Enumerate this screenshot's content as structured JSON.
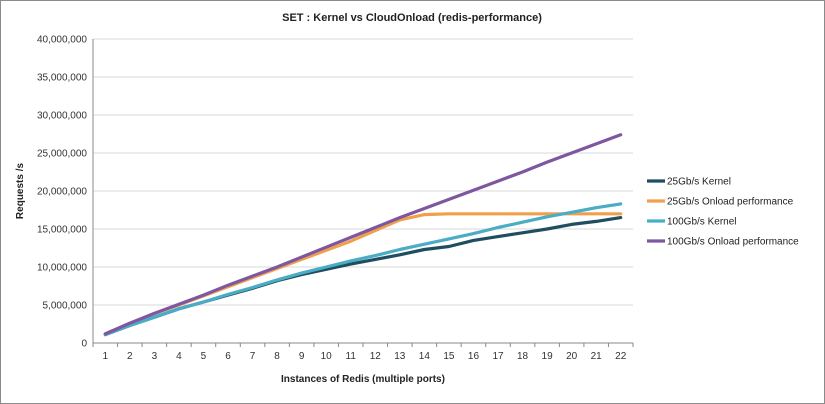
{
  "chart_data": {
    "type": "line",
    "title": "SET : Kernel vs CloudOnload (redis-performance)",
    "xlabel": "Instances of Redis (multiple ports)",
    "ylabel": "Requests /s",
    "ylim": [
      0,
      40000000
    ],
    "y_ticks": [
      "0",
      "5,000,000",
      "10,000,000",
      "15,000,000",
      "20,000,000",
      "25,000,000",
      "30,000,000",
      "35,000,000",
      "40,000,000"
    ],
    "y_tick_values": [
      0,
      5000000,
      10000000,
      15000000,
      20000000,
      25000000,
      30000000,
      35000000,
      40000000
    ],
    "x": [
      1,
      2,
      3,
      4,
      5,
      6,
      7,
      8,
      9,
      10,
      11,
      12,
      13,
      14,
      15,
      16,
      17,
      18,
      19,
      20,
      21,
      22
    ],
    "grid": "horizontal",
    "legend_position": "right",
    "series": [
      {
        "name": "25Gb/s Kernel",
        "color": "#1f4e60",
        "values": [
          1100000,
          2300000,
          3400000,
          4500000,
          5400000,
          6300000,
          7200000,
          8200000,
          9000000,
          9700000,
          10400000,
          11000000,
          11600000,
          12300000,
          12700000,
          13500000,
          14000000,
          14500000,
          15000000,
          15600000,
          16000000,
          16500000
        ]
      },
      {
        "name": "25Gb/s Onload performance",
        "color": "#f0a04b",
        "values": [
          1200000,
          2600000,
          3900000,
          5000000,
          6200000,
          7400000,
          8600000,
          9800000,
          11000000,
          12200000,
          13400000,
          14800000,
          16200000,
          16900000,
          17000000,
          17000000,
          17000000,
          17000000,
          17000000,
          17000000,
          17000000,
          17000000
        ]
      },
      {
        "name": "100Gb/s Kernel",
        "color": "#4bacc6",
        "values": [
          1100000,
          2300000,
          3400000,
          4500000,
          5400000,
          6400000,
          7300000,
          8300000,
          9200000,
          10000000,
          10800000,
          11500000,
          12300000,
          13000000,
          13700000,
          14400000,
          15200000,
          15900000,
          16600000,
          17200000,
          17800000,
          18300000
        ]
      },
      {
        "name": "100Gb/s Onload performance",
        "color": "#7e57a0",
        "values": [
          1200000,
          2600000,
          3900000,
          5100000,
          6300000,
          7600000,
          8800000,
          10000000,
          11300000,
          12600000,
          13900000,
          15200000,
          16500000,
          17700000,
          18900000,
          20100000,
          21300000,
          22500000,
          23800000,
          25000000,
          26200000,
          27400000
        ]
      }
    ]
  }
}
